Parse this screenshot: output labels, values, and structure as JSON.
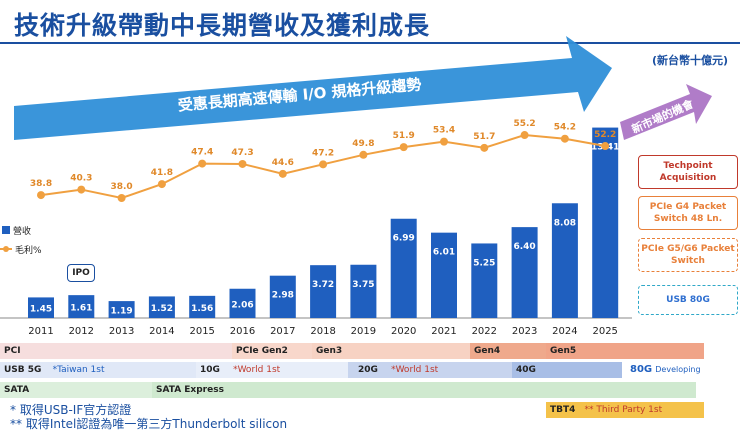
{
  "page": {
    "title": "技術升級帶動中長期營收及獲利成長",
    "unit": "(新台幣十億元)",
    "arrow_text": "受惠長期高速傳輸 I/O 規格升級趨勢",
    "opportunity": "新市場的機會",
    "ipo_label": "IPO"
  },
  "colors": {
    "bar": "#1f5fbf",
    "line": "#f0a040",
    "title": "#1a4fa0",
    "arrow": "#2f8fd8",
    "purple_arrow": "#b07cc8"
  },
  "chart_data": {
    "type": "bar",
    "categories": [
      "2011",
      "2012",
      "2013",
      "2014",
      "2015",
      "2016",
      "2017",
      "2018",
      "2019",
      "2020",
      "2021",
      "2022",
      "2023",
      "2024",
      "2025"
    ],
    "series": [
      {
        "name": "營收",
        "type": "bar",
        "values": [
          1.45,
          1.61,
          1.19,
          1.52,
          1.56,
          2.06,
          2.98,
          3.72,
          3.75,
          6.99,
          6.01,
          5.25,
          6.4,
          8.08,
          13.41
        ]
      },
      {
        "name": "毛利%",
        "type": "line",
        "values": [
          38.8,
          40.3,
          38.0,
          41.8,
          47.4,
          47.3,
          44.6,
          47.2,
          49.8,
          51.9,
          53.4,
          51.7,
          55.2,
          54.2,
          52.2
        ]
      }
    ],
    "legend": "left"
  },
  "side_boxes": [
    {
      "label": "Techpoint Acquisition"
    },
    {
      "label": "PCIe G4 Packet Switch 48 Ln."
    },
    {
      "label": "PCIe G5/G6 Packet Switch"
    },
    {
      "label": "USB 80G"
    }
  ],
  "bands": {
    "pci": "PCI",
    "pcie_gen2": "PCIe Gen2",
    "gen3": "Gen3",
    "gen4": "Gen4",
    "gen5": "Gen5",
    "usb5g": "USB 5G",
    "taiwan_first": "*Taiwan 1st",
    "10g": "10G",
    "world_first_a": "*World 1st",
    "20g": "20G",
    "world_first_b": "*World 1st",
    "40g": "40G",
    "80g": "80G",
    "developing": "Developing",
    "sata": "SATA",
    "sata_express": "SATA Express",
    "tbt4": "TBT4",
    "third_party": "** Third Party 1st"
  },
  "footnotes": {
    "note1": "* 取得USB-IF官方認證",
    "note2": "** 取得Intel認證為唯一第三方Thunderbolt silicon"
  }
}
